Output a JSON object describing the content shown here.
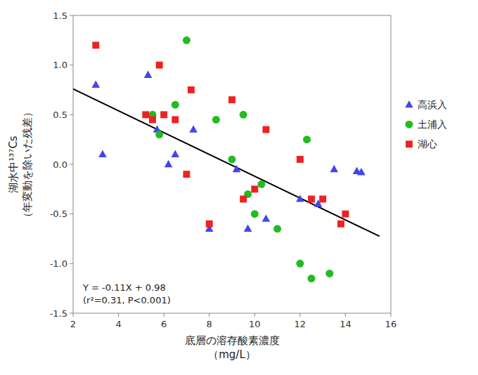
{
  "chart_data": {
    "type": "scatter",
    "xlabel": "底層の溶存酸素濃度\n（mg/L）",
    "ylabel": "湖水中¹³⁷Cs\n（年変動を除いた残差）",
    "xlim": [
      2,
      16
    ],
    "ylim": [
      -1.5,
      1.5
    ],
    "xticks": [
      2,
      4,
      6,
      8,
      10,
      12,
      14,
      16
    ],
    "yticks": [
      -1.5,
      {
        "value": -1.0,
        "label": "-1.0"
      },
      -0.5,
      {
        "value": 0.0,
        "label": "0.0"
      },
      0.5,
      {
        "value": 1.0,
        "label": "1.0"
      },
      1.5
    ],
    "grid": false,
    "legend": "right",
    "series": [
      {
        "name": "高浜入",
        "color": "#4444EE",
        "marker": "triangle",
        "x": [
          3.0,
          3.3,
          5.3,
          5.7,
          6.2,
          6.5,
          7.3,
          8.0,
          9.2,
          9.7,
          10.5,
          12.0,
          12.8,
          13.5,
          14.5,
          14.7
        ],
        "values": [
          0.8,
          0.1,
          0.9,
          0.35,
          0.0,
          0.1,
          0.35,
          -0.65,
          -0.05,
          -0.65,
          -0.55,
          -0.35,
          -0.4,
          -0.05,
          -0.07,
          -0.08
        ]
      },
      {
        "name": "土浦入",
        "color": "#22BB22",
        "marker": "circle",
        "x": [
          5.5,
          5.8,
          6.5,
          7.0,
          8.3,
          9.0,
          9.5,
          9.7,
          10.0,
          10.3,
          11.0,
          12.0,
          12.3,
          12.5,
          13.3
        ],
        "values": [
          0.5,
          0.3,
          0.6,
          1.25,
          0.45,
          0.05,
          0.5,
          -0.3,
          -0.5,
          -0.2,
          -0.65,
          -1.0,
          0.25,
          -1.15,
          -1.1
        ]
      },
      {
        "name": "湖心",
        "color": "#EE2222",
        "marker": "square",
        "x": [
          3.0,
          5.2,
          5.5,
          5.8,
          6.0,
          6.5,
          7.0,
          7.2,
          8.0,
          9.0,
          9.5,
          10.0,
          10.5,
          12.0,
          12.5,
          13.0,
          13.8,
          14.0
        ],
        "values": [
          1.2,
          0.5,
          0.45,
          1.0,
          0.5,
          0.45,
          -0.1,
          0.75,
          -0.6,
          0.65,
          -0.35,
          -0.25,
          0.35,
          0.05,
          -0.35,
          -0.35,
          -0.6,
          -0.5
        ]
      },
      {
        "type": "line",
        "color": "#000000",
        "line_style": "solid",
        "x": [
          2.0,
          15.5
        ],
        "values": [
          0.76,
          -0.725
        ]
      }
    ],
    "annotations": [
      "Y = -0.11X + 0.98",
      "(r²=0.31, P<0.001)"
    ]
  }
}
